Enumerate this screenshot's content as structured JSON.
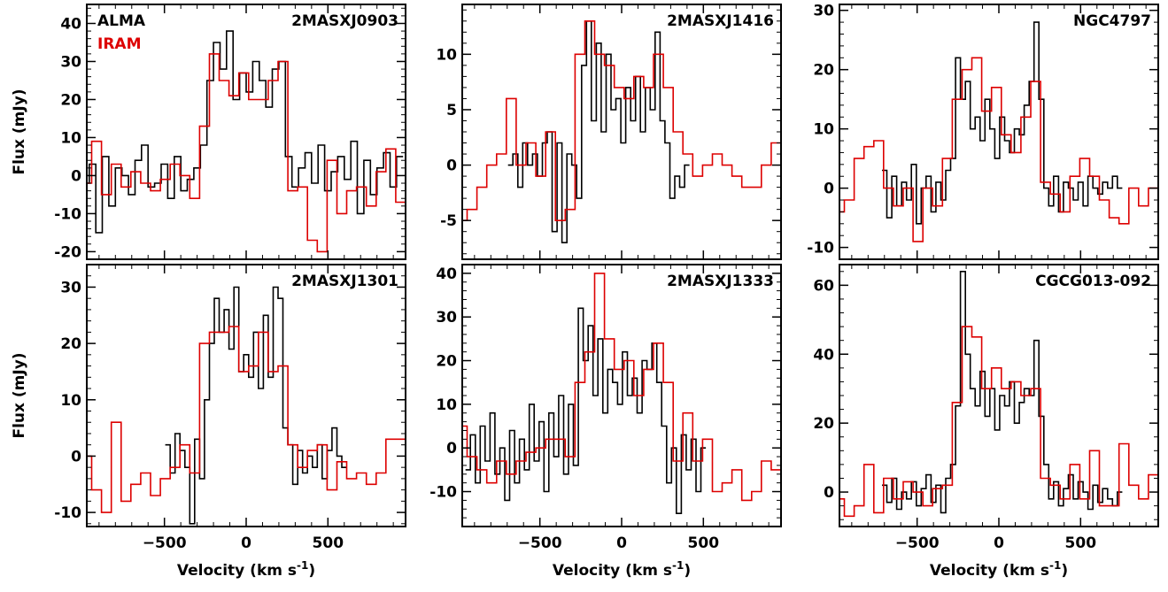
{
  "legend": {
    "alma": "ALMA",
    "iram": "IRAM"
  },
  "colors": {
    "alma": "#000000",
    "iram": "#dd0000"
  },
  "xlabel_main": "Velocity (km s",
  "xlabel_sup": "-1",
  "xlabel_close": ")",
  "ylabel": "Flux (mJy)",
  "chart_data": [
    {
      "type": "line",
      "title": "2MASXJ0903",
      "xlim": [
        -975,
        975
      ],
      "ylim": [
        -22,
        45
      ],
      "yticks": [
        -20,
        -10,
        0,
        10,
        20,
        30,
        40
      ],
      "xticks": [
        -500,
        0,
        500
      ],
      "series": [
        {
          "name": "ALMA",
          "color": "#000000",
          "x": [
            -980,
            -940,
            -900,
            -860,
            -820,
            -780,
            -740,
            -700,
            -660,
            -620,
            -580,
            -540,
            -500,
            -460,
            -420,
            -380,
            -340,
            -300,
            -260,
            -220,
            -180,
            -140,
            -100,
            -60,
            -20,
            20,
            60,
            100,
            140,
            180,
            220,
            260,
            300,
            340,
            380,
            420,
            460,
            500,
            540,
            580,
            620,
            660,
            700,
            740,
            780,
            820,
            860,
            900,
            940
          ],
          "y": [
            -2,
            3,
            -15,
            5,
            -8,
            2,
            0,
            -5,
            4,
            8,
            -3,
            -2,
            3,
            -6,
            5,
            -4,
            -1,
            2,
            8,
            25,
            35,
            28,
            38,
            20,
            27,
            22,
            30,
            25,
            18,
            28,
            30,
            5,
            -3,
            2,
            6,
            -2,
            8,
            -4,
            1,
            5,
            -1,
            9,
            -10,
            4,
            -5,
            2,
            6,
            -3,
            5
          ]
        },
        {
          "name": "IRAM",
          "color": "#dd0000",
          "x": [
            -975,
            -915,
            -855,
            -795,
            -735,
            -675,
            -615,
            -555,
            -495,
            -435,
            -375,
            -315,
            -255,
            -195,
            -135,
            -75,
            -15,
            45,
            105,
            165,
            225,
            285,
            345,
            405,
            465,
            525,
            585,
            645,
            705,
            765,
            825,
            885,
            945
          ],
          "y": [
            -2,
            9,
            -5,
            3,
            -3,
            1,
            -2,
            -4,
            -1,
            3,
            0,
            -6,
            13,
            32,
            25,
            21,
            27,
            20,
            20,
            25,
            30,
            -4,
            -3,
            -17,
            -20,
            4,
            -10,
            -4,
            -3,
            -8,
            1,
            7,
            -7
          ]
        }
      ]
    },
    {
      "type": "line",
      "title": "2MASXJ1416",
      "xlim": [
        -975,
        975
      ],
      "ylim": [
        -8.5,
        14.5
      ],
      "yticks": [
        -5,
        0,
        5,
        10
      ],
      "xticks": [
        -500,
        0,
        500
      ],
      "series": [
        {
          "name": "ALMA",
          "color": "#000000",
          "x": [
            -680,
            -650,
            -620,
            -590,
            -560,
            -530,
            -500,
            -470,
            -440,
            -410,
            -380,
            -350,
            -320,
            -290,
            -260,
            -230,
            -200,
            -170,
            -140,
            -110,
            -80,
            -50,
            -20,
            10,
            40,
            70,
            100,
            130,
            160,
            190,
            220,
            250,
            280,
            310,
            340,
            370,
            400
          ],
          "y": [
            0,
            1,
            -2,
            2,
            0,
            1,
            -1,
            2,
            3,
            -6,
            2,
            -7,
            1,
            0,
            -3,
            9,
            13,
            4,
            11,
            3,
            10,
            5,
            6,
            2,
            7,
            4,
            8,
            3,
            7,
            5,
            12,
            4,
            2,
            -3,
            -1,
            -2,
            0
          ]
        },
        {
          "name": "IRAM",
          "color": "#dd0000",
          "x": [
            -975,
            -915,
            -855,
            -795,
            -735,
            -675,
            -615,
            -555,
            -495,
            -435,
            -375,
            -315,
            -255,
            -195,
            -135,
            -75,
            -15,
            45,
            105,
            165,
            225,
            285,
            345,
            405,
            465,
            525,
            585,
            645,
            705,
            765,
            825,
            885,
            945
          ],
          "y": [
            -5,
            -4,
            -2,
            0,
            1,
            6,
            0,
            2,
            -1,
            3,
            -5,
            -4,
            10,
            13,
            10,
            9,
            7,
            6,
            8,
            7,
            10,
            7,
            3,
            1,
            -1,
            0,
            1,
            0,
            -1,
            -2,
            -2,
            0,
            2
          ]
        }
      ]
    },
    {
      "type": "line",
      "title": "NGC4797",
      "xlim": [
        -975,
        975
      ],
      "ylim": [
        -12,
        31
      ],
      "yticks": [
        -10,
        0,
        10,
        20,
        30
      ],
      "xticks": [
        -500,
        0,
        500
      ],
      "series": [
        {
          "name": "ALMA",
          "color": "#000000",
          "x": [
            -700,
            -670,
            -640,
            -610,
            -580,
            -550,
            -520,
            -490,
            -460,
            -430,
            -400,
            -370,
            -340,
            -310,
            -280,
            -250,
            -220,
            -190,
            -160,
            -130,
            -100,
            -70,
            -40,
            -10,
            20,
            50,
            80,
            110,
            140,
            170,
            200,
            230,
            260,
            290,
            320,
            350,
            380,
            410,
            440,
            470,
            500,
            530,
            560,
            590,
            620,
            650,
            680,
            710,
            740
          ],
          "y": [
            3,
            -5,
            2,
            -3,
            1,
            -2,
            4,
            -6,
            0,
            2,
            -4,
            1,
            -2,
            3,
            5,
            22,
            15,
            18,
            10,
            12,
            8,
            15,
            10,
            5,
            12,
            8,
            6,
            10,
            9,
            14,
            18,
            28,
            15,
            0,
            -3,
            2,
            -4,
            1,
            0,
            -2,
            1,
            -3,
            2,
            0,
            -1,
            1,
            0,
            2,
            0
          ]
        },
        {
          "name": "IRAM",
          "color": "#dd0000",
          "x": [
            -975,
            -915,
            -855,
            -795,
            -735,
            -675,
            -615,
            -555,
            -495,
            -435,
            -375,
            -315,
            -255,
            -195,
            -135,
            -75,
            -15,
            45,
            105,
            165,
            225,
            285,
            345,
            405,
            465,
            525,
            585,
            645,
            705,
            765,
            825,
            885,
            945
          ],
          "y": [
            -4,
            -2,
            5,
            7,
            8,
            0,
            -3,
            0,
            -9,
            0,
            -3,
            5,
            15,
            20,
            22,
            13,
            17,
            9,
            6,
            12,
            18,
            1,
            -1,
            -4,
            2,
            5,
            2,
            -2,
            -5,
            -6,
            0,
            -3,
            0
          ]
        }
      ]
    },
    {
      "type": "line",
      "title": "2MASXJ1301",
      "xlim": [
        -975,
        975
      ],
      "ylim": [
        -12.5,
        34
      ],
      "yticks": [
        -10,
        0,
        10,
        20,
        30
      ],
      "xticks": [
        -500,
        0,
        500
      ],
      "series": [
        {
          "name": "ALMA",
          "color": "#000000",
          "x": [
            -480,
            -450,
            -420,
            -390,
            -360,
            -330,
            -300,
            -270,
            -240,
            -210,
            -180,
            -150,
            -120,
            -90,
            -60,
            -30,
            0,
            30,
            60,
            90,
            120,
            150,
            180,
            210,
            240,
            270,
            300,
            330,
            360,
            390,
            420,
            450,
            480,
            510,
            540,
            570,
            600
          ],
          "y": [
            2,
            -3,
            4,
            1,
            -2,
            -12,
            3,
            -4,
            10,
            20,
            28,
            22,
            26,
            19,
            30,
            15,
            18,
            14,
            22,
            12,
            25,
            14,
            30,
            28,
            5,
            2,
            -5,
            1,
            -3,
            0,
            -2,
            2,
            -4,
            1,
            5,
            0,
            -2
          ]
        },
        {
          "name": "IRAM",
          "color": "#dd0000",
          "x": [
            -975,
            -915,
            -855,
            -795,
            -735,
            -675,
            -615,
            -555,
            -495,
            -435,
            -375,
            -315,
            -255,
            -195,
            -135,
            -75,
            -15,
            45,
            105,
            165,
            225,
            285,
            345,
            405,
            465,
            525,
            585,
            645,
            705,
            765,
            825,
            885,
            945
          ],
          "y": [
            0,
            -6,
            -10,
            6,
            -8,
            -5,
            -3,
            -7,
            -4,
            -2,
            2,
            -3,
            20,
            22,
            22,
            23,
            15,
            16,
            22,
            15,
            16,
            2,
            -2,
            1,
            2,
            -6,
            -1,
            -4,
            -3,
            -5,
            -3,
            3,
            3
          ]
        }
      ]
    },
    {
      "type": "line",
      "title": "2MASXJ1333",
      "xlim": [
        -975,
        975
      ],
      "ylim": [
        -18,
        42
      ],
      "yticks": [
        -10,
        0,
        10,
        20,
        30,
        40
      ],
      "xticks": [
        -500,
        0,
        500
      ],
      "series": [
        {
          "name": "ALMA",
          "color": "#000000",
          "x": [
            -940,
            -910,
            -880,
            -850,
            -820,
            -790,
            -760,
            -730,
            -700,
            -670,
            -640,
            -610,
            -580,
            -550,
            -520,
            -490,
            -460,
            -430,
            -400,
            -370,
            -340,
            -310,
            -280,
            -250,
            -220,
            -190,
            -160,
            -130,
            -100,
            -70,
            -40,
            -10,
            20,
            50,
            80,
            110,
            140,
            170,
            200,
            230,
            260,
            290,
            320,
            350,
            380,
            410,
            440,
            470,
            500
          ],
          "y": [
            -5,
            3,
            -8,
            5,
            -3,
            8,
            -6,
            0,
            -12,
            4,
            -8,
            2,
            -5,
            10,
            -3,
            6,
            -10,
            8,
            -2,
            12,
            -6,
            10,
            -4,
            32,
            20,
            28,
            12,
            25,
            8,
            18,
            15,
            10,
            22,
            12,
            16,
            8,
            20,
            18,
            24,
            15,
            5,
            -8,
            0,
            -15,
            3,
            -5,
            2,
            -10,
            0
          ]
        },
        {
          "name": "IRAM",
          "color": "#dd0000",
          "x": [
            -975,
            -915,
            -855,
            -795,
            -735,
            -675,
            -615,
            -555,
            -495,
            -435,
            -375,
            -315,
            -255,
            -195,
            -135,
            -75,
            -15,
            45,
            105,
            165,
            225,
            285,
            345,
            405,
            465,
            525,
            585,
            645,
            705,
            765,
            825,
            885,
            945
          ],
          "y": [
            5,
            -2,
            -5,
            -8,
            -3,
            -6,
            -3,
            -1,
            0,
            2,
            2,
            -2,
            15,
            22,
            40,
            25,
            18,
            20,
            12,
            18,
            24,
            15,
            -3,
            8,
            -3,
            2,
            -10,
            -8,
            -5,
            -12,
            -10,
            -3,
            -5
          ]
        }
      ]
    },
    {
      "type": "line",
      "title": "CGCG013-092",
      "xlim": [
        -975,
        975
      ],
      "ylim": [
        -10,
        66
      ],
      "yticks": [
        0,
        20,
        40,
        60
      ],
      "xticks": [
        -500,
        0,
        500
      ],
      "series": [
        {
          "name": "ALMA",
          "color": "#000000",
          "x": [
            -700,
            -670,
            -640,
            -610,
            -580,
            -550,
            -520,
            -490,
            -460,
            -430,
            -400,
            -370,
            -340,
            -310,
            -280,
            -250,
            -220,
            -190,
            -160,
            -130,
            -100,
            -70,
            -40,
            -10,
            20,
            50,
            80,
            110,
            140,
            170,
            200,
            230,
            260,
            290,
            320,
            350,
            380,
            410,
            440,
            470,
            500,
            530,
            560,
            590,
            620,
            650,
            680,
            710,
            740
          ],
          "y": [
            2,
            -3,
            4,
            -5,
            0,
            -2,
            3,
            -4,
            1,
            5,
            -3,
            2,
            -6,
            4,
            8,
            25,
            64,
            40,
            30,
            25,
            35,
            22,
            30,
            18,
            28,
            25,
            32,
            20,
            26,
            30,
            28,
            44,
            22,
            8,
            -2,
            3,
            -4,
            1,
            5,
            -2,
            3,
            0,
            -5,
            2,
            -3,
            1,
            -2,
            -4,
            0
          ]
        },
        {
          "name": "IRAM",
          "color": "#dd0000",
          "x": [
            -975,
            -915,
            -855,
            -795,
            -735,
            -675,
            -615,
            -555,
            -495,
            -435,
            -375,
            -315,
            -255,
            -195,
            -135,
            -75,
            -15,
            45,
            105,
            165,
            225,
            285,
            345,
            405,
            465,
            525,
            585,
            645,
            705,
            765,
            825,
            885,
            945
          ],
          "y": [
            -2,
            -7,
            -4,
            8,
            -6,
            4,
            -2,
            3,
            0,
            -4,
            1,
            2,
            26,
            48,
            45,
            30,
            36,
            30,
            32,
            28,
            30,
            4,
            2,
            -2,
            8,
            -2,
            12,
            -4,
            -4,
            14,
            2,
            -2,
            5
          ]
        }
      ]
    }
  ]
}
